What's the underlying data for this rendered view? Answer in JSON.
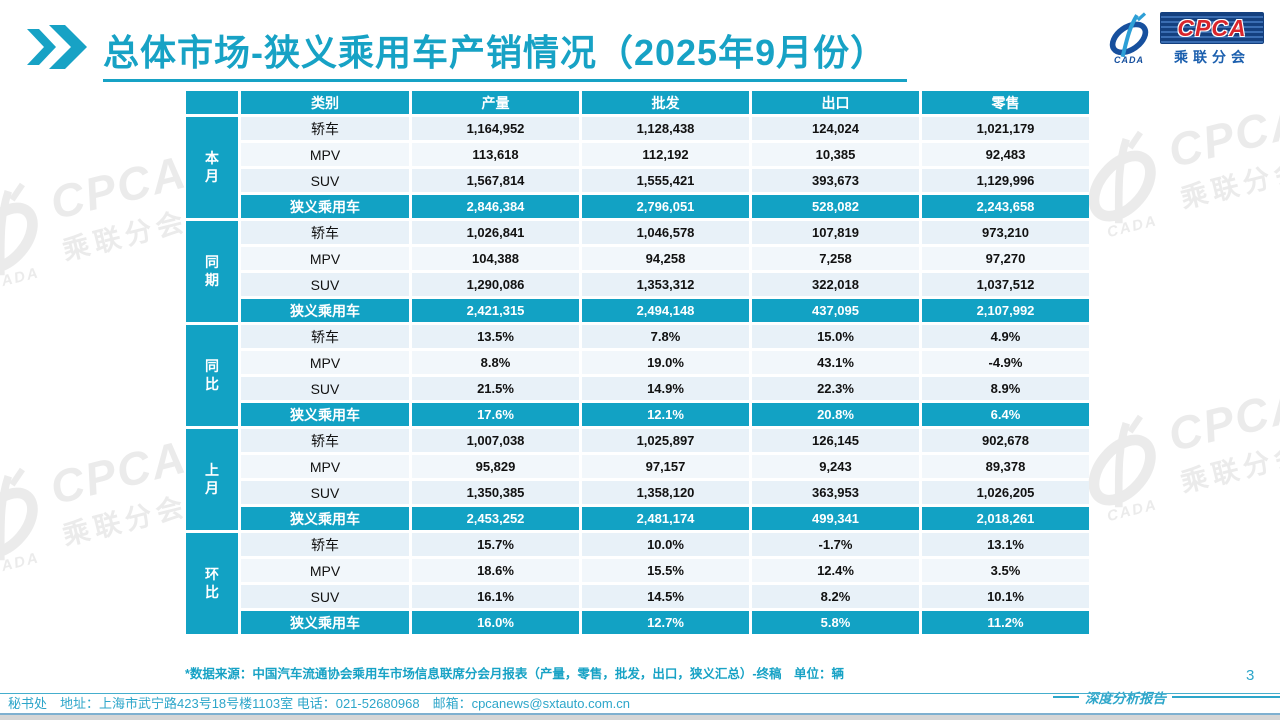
{
  "colors": {
    "accent_teal": "#17A2C5",
    "table_teal": "#12A2C4",
    "row_light_blue": "#E8F1F8",
    "logo_red": "#D9262C",
    "logo_dark_blue": "#14407F",
    "logo_blue": "#1B5FAE"
  },
  "header": {
    "title": "总体市场-狭义乘用车产销情况（2025年9月份）"
  },
  "logo": {
    "acronym": "CPCA",
    "name_cn": "乘联分会",
    "assoc": "CADA"
  },
  "table": {
    "columns": [
      "类别",
      "产量",
      "批发",
      "出口",
      "零售"
    ],
    "groups": [
      {
        "label": "本月",
        "rows": [
          {
            "category": "轿车",
            "values": [
              "1,164,952",
              "1,128,438",
              "124,024",
              "1,021,179"
            ],
            "subtotal": false
          },
          {
            "category": "MPV",
            "values": [
              "113,618",
              "112,192",
              "10,385",
              "92,483"
            ],
            "subtotal": false
          },
          {
            "category": "SUV",
            "values": [
              "1,567,814",
              "1,555,421",
              "393,673",
              "1,129,996"
            ],
            "subtotal": false
          },
          {
            "category": "狭义乘用车",
            "values": [
              "2,846,384",
              "2,796,051",
              "528,082",
              "2,243,658"
            ],
            "subtotal": true
          }
        ]
      },
      {
        "label": "同期",
        "rows": [
          {
            "category": "轿车",
            "values": [
              "1,026,841",
              "1,046,578",
              "107,819",
              "973,210"
            ],
            "subtotal": false
          },
          {
            "category": "MPV",
            "values": [
              "104,388",
              "94,258",
              "7,258",
              "97,270"
            ],
            "subtotal": false
          },
          {
            "category": "SUV",
            "values": [
              "1,290,086",
              "1,353,312",
              "322,018",
              "1,037,512"
            ],
            "subtotal": false
          },
          {
            "category": "狭义乘用车",
            "values": [
              "2,421,315",
              "2,494,148",
              "437,095",
              "2,107,992"
            ],
            "subtotal": true
          }
        ]
      },
      {
        "label": "同比",
        "rows": [
          {
            "category": "轿车",
            "values": [
              "13.5%",
              "7.8%",
              "15.0%",
              "4.9%"
            ],
            "subtotal": false
          },
          {
            "category": "MPV",
            "values": [
              "8.8%",
              "19.0%",
              "43.1%",
              "-4.9%"
            ],
            "subtotal": false
          },
          {
            "category": "SUV",
            "values": [
              "21.5%",
              "14.9%",
              "22.3%",
              "8.9%"
            ],
            "subtotal": false
          },
          {
            "category": "狭义乘用车",
            "values": [
              "17.6%",
              "12.1%",
              "20.8%",
              "6.4%"
            ],
            "subtotal": true
          }
        ]
      },
      {
        "label": "上月",
        "rows": [
          {
            "category": "轿车",
            "values": [
              "1,007,038",
              "1,025,897",
              "126,145",
              "902,678"
            ],
            "subtotal": false
          },
          {
            "category": "MPV",
            "values": [
              "95,829",
              "97,157",
              "9,243",
              "89,378"
            ],
            "subtotal": false
          },
          {
            "category": "SUV",
            "values": [
              "1,350,385",
              "1,358,120",
              "363,953",
              "1,026,205"
            ],
            "subtotal": false
          },
          {
            "category": "狭义乘用车",
            "values": [
              "2,453,252",
              "2,481,174",
              "499,341",
              "2,018,261"
            ],
            "subtotal": true
          }
        ]
      },
      {
        "label": "环比",
        "rows": [
          {
            "category": "轿车",
            "values": [
              "15.7%",
              "10.0%",
              "-1.7%",
              "13.1%"
            ],
            "subtotal": false
          },
          {
            "category": "MPV",
            "values": [
              "18.6%",
              "15.5%",
              "12.4%",
              "3.5%"
            ],
            "subtotal": false
          },
          {
            "category": "SUV",
            "values": [
              "16.1%",
              "14.5%",
              "8.2%",
              "10.1%"
            ],
            "subtotal": false
          },
          {
            "category": "狭义乘用车",
            "values": [
              "16.0%",
              "12.7%",
              "5.8%",
              "11.2%"
            ],
            "subtotal": true
          }
        ]
      }
    ]
  },
  "footnote": "*数据来源：中国汽车流通协会乘用车市场信息联席分会月报表（产量，零售，批发，出口，狭义汇总）-终稿　单位：辆",
  "page_number": "3",
  "report_tag": "深度分析报告",
  "footer": "秘书处　地址：上海市武宁路423号18号楼1103室 电话：021-52680968　邮箱：cpcanews@sxtauto.com.cn"
}
